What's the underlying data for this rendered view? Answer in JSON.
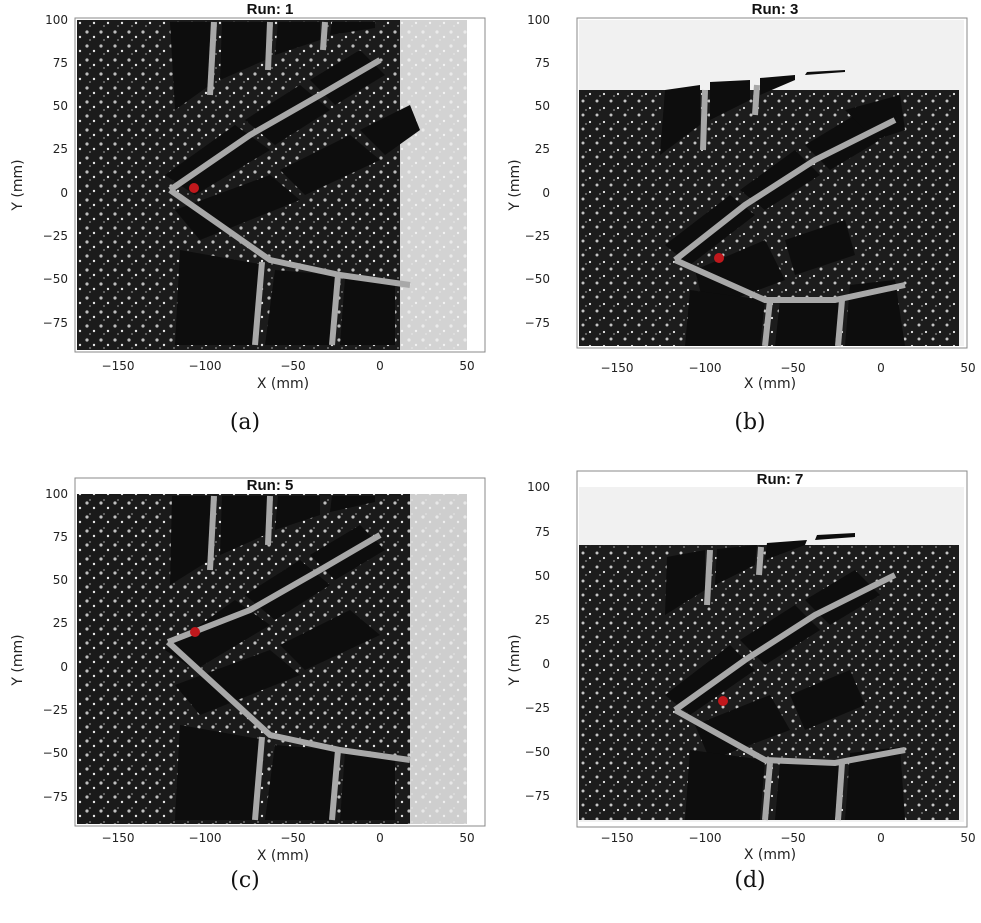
{
  "figure": {
    "panels": [
      {
        "id": "a",
        "title": "Run: 1",
        "caption": "(a)",
        "xlabel": "X (mm)",
        "ylabel": "Y (mm)",
        "xticks": [
          "−150",
          "−100",
          "−50",
          "0",
          "50"
        ],
        "yticks": [
          "100",
          "75",
          "50",
          "25",
          "0",
          "−25",
          "−50",
          "−75"
        ],
        "marker": {
          "x": -108,
          "y": 3
        }
      },
      {
        "id": "b",
        "title": "Run: 3",
        "caption": "(b)",
        "xlabel": "X (mm)",
        "ylabel": "Y (mm)",
        "xticks": [
          "−150",
          "−100",
          "−50",
          "0",
          "50"
        ],
        "yticks": [
          "100",
          "75",
          "50",
          "25",
          "0",
          "−25",
          "−50",
          "−75"
        ],
        "marker": {
          "x": -94,
          "y": -38
        }
      },
      {
        "id": "c",
        "title": "Run: 5",
        "caption": "(c)",
        "xlabel": "X (mm)",
        "ylabel": "Y (mm)",
        "xticks": [
          "−150",
          "−100",
          "−50",
          "0",
          "50"
        ],
        "yticks": [
          "100",
          "75",
          "50",
          "25",
          "0",
          "−25",
          "−50",
          "−75"
        ],
        "marker": {
          "x": -108,
          "y": 20
        }
      },
      {
        "id": "d",
        "title": "Run: 7",
        "caption": "(d)",
        "xlabel": "X (mm)",
        "ylabel": "Y (mm)",
        "xticks": [
          "−150",
          "−100",
          "−50",
          "0",
          "50"
        ],
        "yticks": [
          "100",
          "75",
          "50",
          "25",
          "0",
          "−25",
          "−50",
          "−75"
        ],
        "marker": {
          "x": -92,
          "y": -21
        }
      }
    ],
    "colors": {
      "marker": "#c0181c",
      "tread": "#111111",
      "groove": "#9a9a9a",
      "spray": "#e8e8e8"
    }
  }
}
